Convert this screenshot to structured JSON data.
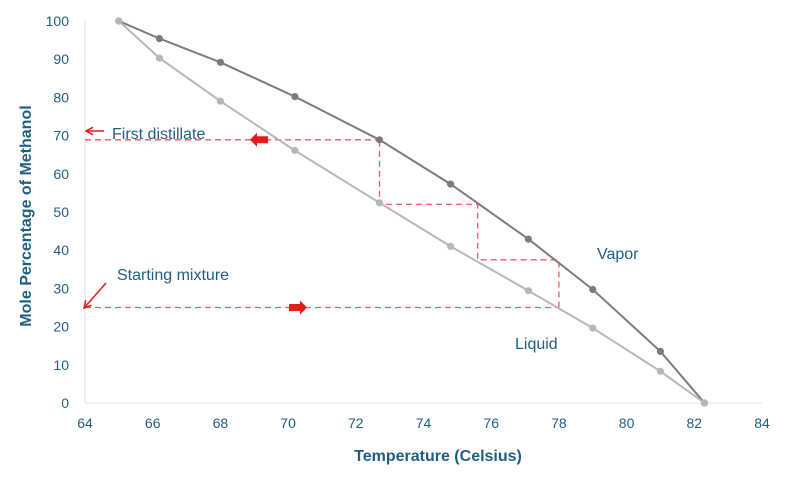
{
  "chart_data": {
    "type": "line",
    "xlabel": "Temperature (Celsius)",
    "ylabel": "Mole Percentage of Methanol",
    "xlim": [
      64,
      84
    ],
    "ylim": [
      0,
      100
    ],
    "xticks": [
      64,
      66,
      68,
      70,
      72,
      74,
      76,
      78,
      80,
      82,
      84
    ],
    "yticks": [
      0,
      10,
      20,
      30,
      40,
      50,
      60,
      70,
      80,
      90,
      100
    ],
    "grid": false,
    "series": [
      {
        "name": "Vapor",
        "color": "#7f7a76",
        "points": [
          [
            65.0,
            100
          ],
          [
            66.2,
            95.4
          ],
          [
            68.0,
            89.2
          ],
          [
            70.2,
            80.2
          ],
          [
            72.7,
            68.9
          ],
          [
            74.8,
            57.3
          ],
          [
            77.1,
            42.9
          ],
          [
            79.0,
            29.7
          ],
          [
            81.0,
            13.5
          ],
          [
            82.3,
            0
          ]
        ]
      },
      {
        "name": "Liquid",
        "color": "#b7b7b7",
        "points": [
          [
            65.0,
            100
          ],
          [
            66.2,
            90.3
          ],
          [
            68.0,
            79.0
          ],
          [
            70.2,
            66.1
          ],
          [
            72.7,
            52.4
          ],
          [
            74.8,
            41.0
          ],
          [
            77.1,
            29.4
          ],
          [
            79.0,
            19.6
          ],
          [
            81.0,
            8.3
          ],
          [
            82.3,
            0
          ]
        ]
      }
    ],
    "steps": {
      "color": "#f05a5a",
      "path": [
        [
          78.0,
          25.0
        ],
        [
          78.0,
          37.5
        ],
        [
          75.6,
          37.5
        ],
        [
          75.6,
          52.0
        ],
        [
          72.7,
          52.0
        ],
        [
          72.7,
          68.9
        ]
      ]
    },
    "annotations": {
      "first_distillate": "First distillate",
      "starting_mixture": "Starting mixture",
      "vapor": "Vapor",
      "liquid": "Liquid",
      "first_distillate_level": 68.9,
      "starting_mixture_level": 25.0,
      "arrow_color": "#e21b1b"
    }
  }
}
